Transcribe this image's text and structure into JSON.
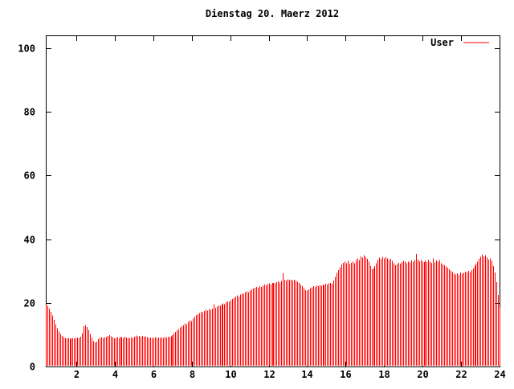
{
  "window": {
    "background": "#ffffff"
  },
  "chart_data": {
    "type": "bar",
    "title": "Dienstag 20. Maerz 2012",
    "legend": {
      "label": "User",
      "position": "top-right"
    },
    "bar_color": "#ff0000",
    "axis_color": "#000000",
    "xlabel": "",
    "ylabel": "",
    "x_unit": "hour of day",
    "sample_interval_minutes": 5,
    "x_first_hour": 0.417,
    "x_last_hour": 24,
    "xlim": [
      0.417,
      24
    ],
    "ylim": [
      0,
      104
    ],
    "xticks": [
      2,
      4,
      6,
      8,
      10,
      12,
      14,
      16,
      18,
      20,
      22,
      24
    ],
    "yticks": [
      0,
      20,
      40,
      60,
      80,
      100
    ],
    "grid": false,
    "values": [
      19.6,
      19.0,
      18.2,
      17.2,
      16.0,
      14.6,
      13.2,
      12.0,
      11.0,
      10.2,
      9.6,
      9.2,
      9.0,
      8.8,
      8.9,
      8.7,
      8.8,
      9.0,
      8.8,
      8.9,
      9.1,
      9.0,
      9.3,
      10.5,
      12.6,
      13.0,
      12.4,
      11.5,
      10.2,
      9.0,
      8.0,
      7.6,
      7.8,
      8.6,
      9.0,
      9.2,
      9.0,
      9.2,
      9.4,
      9.6,
      9.8,
      9.5,
      9.2,
      8.8,
      9.0,
      9.2,
      9.0,
      9.4,
      9.2,
      9.0,
      9.3,
      9.1,
      8.9,
      9.0,
      9.2,
      9.0,
      9.4,
      9.7,
      9.5,
      9.6,
      9.4,
      9.6,
      9.3,
      9.5,
      9.2,
      9.0,
      9.1,
      8.9,
      9.0,
      9.2,
      9.0,
      9.1,
      9.0,
      9.2,
      9.0,
      9.3,
      9.1,
      9.4,
      9.2,
      9.5,
      9.8,
      10.3,
      10.8,
      11.4,
      11.8,
      12.2,
      12.6,
      13.0,
      13.5,
      13.2,
      14.0,
      14.5,
      14.2,
      15.0,
      15.6,
      16.2,
      16.4,
      16.8,
      17.2,
      17.0,
      17.4,
      17.8,
      17.6,
      18.0,
      17.8,
      18.2,
      19.6,
      18.4,
      18.8,
      19.2,
      19.0,
      19.5,
      19.8,
      19.6,
      20.2,
      20.5,
      20.3,
      20.8,
      21.2,
      21.6,
      21.9,
      22.3,
      22.0,
      22.6,
      23.0,
      22.8,
      23.3,
      23.6,
      23.4,
      23.9,
      24.2,
      24.5,
      24.7,
      25.0,
      24.8,
      25.2,
      25.0,
      25.4,
      25.7,
      25.5,
      25.9,
      26.1,
      25.8,
      26.2,
      26.3,
      26.1,
      26.5,
      26.8,
      26.4,
      26.9,
      29.3,
      27.2,
      27.0,
      27.4,
      27.1,
      27.3,
      27.0,
      27.3,
      26.9,
      26.6,
      26.2,
      25.8,
      25.2,
      24.6,
      24.0,
      23.8,
      24.2,
      24.6,
      24.9,
      25.3,
      25.0,
      25.5,
      25.2,
      25.6,
      25.4,
      25.8,
      25.5,
      26.0,
      25.7,
      26.1,
      26.3,
      26.0,
      27.0,
      28.2,
      29.4,
      30.3,
      31.2,
      32.0,
      32.6,
      33.0,
      32.5,
      33.2,
      32.2,
      32.6,
      33.0,
      32.5,
      33.4,
      34.0,
      33.5,
      34.6,
      34.2,
      35.0,
      34.5,
      33.8,
      33.0,
      31.5,
      30.5,
      30.8,
      31.5,
      32.5,
      33.5,
      34.2,
      33.8,
      34.5,
      33.9,
      34.3,
      34.0,
      33.5,
      33.8,
      33.2,
      32.5,
      31.8,
      32.2,
      32.6,
      32.3,
      32.8,
      33.2,
      32.9,
      32.5,
      33.0,
      32.7,
      33.3,
      32.9,
      33.4,
      35.3,
      33.6,
      33.1,
      33.5,
      33.0,
      32.8,
      33.2,
      32.8,
      33.4,
      33.0,
      32.6,
      34.0,
      32.7,
      33.3,
      32.9,
      33.5,
      32.4,
      32.0,
      31.8,
      31.4,
      31.0,
      30.5,
      30.0,
      29.6,
      29.2,
      28.9,
      29.3,
      28.8,
      29.5,
      29.1,
      29.4,
      29.8,
      29.5,
      30.0,
      29.7,
      30.3,
      30.8,
      31.5,
      32.3,
      33.0,
      33.8,
      34.5,
      35.2,
      34.6,
      35.0,
      34.2,
      33.6,
      34.0,
      33.2,
      31.5,
      29.5,
      26.5,
      22.5,
      18.5
    ]
  }
}
